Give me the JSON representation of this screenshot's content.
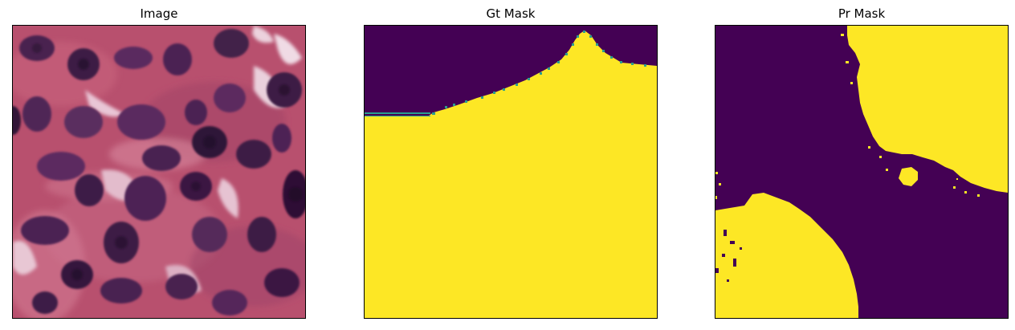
{
  "figure": {
    "panels": [
      {
        "title": "Image",
        "kind": "tissue-histology-image"
      },
      {
        "title": "Gt Mask",
        "kind": "binary-mask"
      },
      {
        "title": "Pr Mask",
        "kind": "binary-mask"
      }
    ],
    "colors": {
      "mask_background": "#440154",
      "mask_foreground": "#fde725",
      "tissue_base": "#b8506e",
      "nucleus": "#3d1d45",
      "stroma_light": "#e9c6d6"
    }
  }
}
